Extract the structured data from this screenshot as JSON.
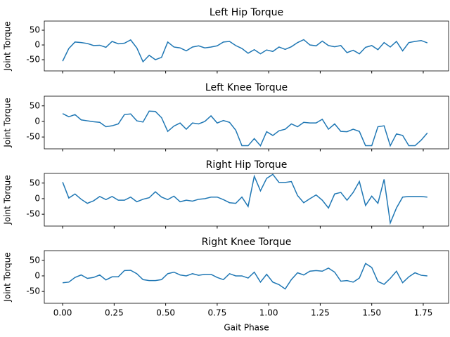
{
  "chart_data": [
    {
      "type": "line",
      "title": "Left Hip Torque",
      "ylabel": "Joint Torque",
      "color": "#1f77b4",
      "x": [
        0,
        0.03,
        0.06,
        0.09,
        0.12,
        0.15,
        0.18,
        0.21,
        0.24,
        0.27,
        0.3,
        0.33,
        0.36,
        0.39,
        0.42,
        0.45,
        0.48,
        0.51,
        0.54,
        0.57,
        0.6,
        0.63,
        0.66,
        0.69,
        0.72,
        0.75,
        0.78,
        0.81,
        0.84,
        0.87,
        0.9,
        0.93,
        0.96,
        0.99,
        1.02,
        1.05,
        1.08,
        1.11,
        1.14,
        1.17,
        1.2,
        1.23,
        1.26,
        1.29,
        1.32,
        1.35,
        1.38,
        1.41,
        1.44,
        1.47,
        1.5,
        1.53,
        1.56,
        1.59,
        1.62,
        1.65,
        1.68,
        1.71,
        1.74,
        1.77
      ],
      "values": [
        -55,
        -12,
        10,
        8,
        5,
        -2,
        -1,
        -8,
        12,
        4,
        6,
        17,
        -10,
        -57,
        -35,
        -50,
        -42,
        10,
        -7,
        -10,
        -20,
        -7,
        -3,
        -10,
        -7,
        -3,
        10,
        12,
        -2,
        -12,
        -28,
        -16,
        -30,
        -17,
        -22,
        -7,
        -15,
        -6,
        8,
        18,
        0,
        -3,
        13,
        -2,
        -6,
        -2,
        -26,
        -18,
        -30,
        -8,
        -2,
        -16,
        8,
        -7,
        12,
        -20,
        8,
        12,
        15,
        7
      ],
      "xlim": [
        -0.089,
        1.873
      ],
      "ylim": [
        -88,
        81
      ],
      "yticks": [
        -50,
        0,
        50
      ],
      "xticks": [
        0,
        0.25,
        0.5,
        0.75,
        1,
        1.25,
        1.5,
        1.75
      ]
    },
    {
      "type": "line",
      "title": "Left Knee Torque",
      "ylabel": "Joint Torque",
      "color": "#1f77b4",
      "x": [
        0,
        0.03,
        0.06,
        0.09,
        0.12,
        0.15,
        0.18,
        0.21,
        0.24,
        0.27,
        0.3,
        0.33,
        0.36,
        0.39,
        0.42,
        0.45,
        0.48,
        0.51,
        0.54,
        0.57,
        0.6,
        0.63,
        0.66,
        0.69,
        0.72,
        0.75,
        0.78,
        0.81,
        0.84,
        0.87,
        0.9,
        0.93,
        0.96,
        0.99,
        1.02,
        1.05,
        1.08,
        1.11,
        1.14,
        1.17,
        1.2,
        1.23,
        1.26,
        1.29,
        1.32,
        1.35,
        1.38,
        1.41,
        1.44,
        1.47,
        1.5,
        1.53,
        1.56,
        1.59,
        1.62,
        1.65,
        1.68,
        1.71,
        1.74,
        1.77
      ],
      "values": [
        25,
        15,
        22,
        5,
        2,
        -1,
        -3,
        -17,
        -14,
        -8,
        22,
        24,
        2,
        -2,
        33,
        32,
        12,
        -32,
        -15,
        -5,
        -25,
        -5,
        -8,
        0,
        18,
        -5,
        3,
        -3,
        -28,
        -78,
        -78,
        -55,
        -78,
        -33,
        -45,
        -30,
        -25,
        -8,
        -17,
        -3,
        -5,
        -5,
        7,
        -25,
        -8,
        -32,
        -33,
        -25,
        -32,
        -78,
        -78,
        -17,
        -14,
        -78,
        -40,
        -45,
        -78,
        -78,
        -60,
        -37
      ],
      "xlim": [
        -0.089,
        1.873
      ],
      "ylim": [
        -88,
        81
      ],
      "yticks": [
        -50,
        0,
        50
      ],
      "xticks": [
        0,
        0.25,
        0.5,
        0.75,
        1,
        1.25,
        1.5,
        1.75
      ]
    },
    {
      "type": "line",
      "title": "Right Hip Torque",
      "ylabel": "Joint Torque",
      "color": "#1f77b4",
      "x": [
        0,
        0.03,
        0.06,
        0.09,
        0.12,
        0.15,
        0.18,
        0.21,
        0.24,
        0.27,
        0.3,
        0.33,
        0.36,
        0.39,
        0.42,
        0.45,
        0.48,
        0.51,
        0.54,
        0.57,
        0.6,
        0.63,
        0.66,
        0.69,
        0.72,
        0.75,
        0.78,
        0.81,
        0.84,
        0.87,
        0.9,
        0.93,
        0.96,
        0.99,
        1.02,
        1.05,
        1.08,
        1.11,
        1.14,
        1.17,
        1.2,
        1.23,
        1.26,
        1.29,
        1.32,
        1.35,
        1.38,
        1.41,
        1.44,
        1.47,
        1.5,
        1.53,
        1.56,
        1.59,
        1.62,
        1.65,
        1.68,
        1.71,
        1.74,
        1.77
      ],
      "values": [
        53,
        2,
        15,
        -2,
        -15,
        -7,
        7,
        -3,
        7,
        -5,
        -5,
        5,
        -10,
        -2,
        3,
        22,
        5,
        -3,
        8,
        -10,
        -5,
        -8,
        -2,
        0,
        5,
        5,
        -3,
        -13,
        -15,
        5,
        -25,
        72,
        25,
        65,
        78,
        52,
        52,
        55,
        10,
        -13,
        0,
        12,
        -5,
        -30,
        15,
        20,
        -5,
        20,
        55,
        -22,
        8,
        -15,
        62,
        -78,
        -30,
        5,
        7,
        7,
        7,
        5
      ],
      "xlim": [
        -0.089,
        1.873
      ],
      "ylim": [
        -88,
        81
      ],
      "yticks": [
        -50,
        0,
        50
      ],
      "xticks": [
        0,
        0.25,
        0.5,
        0.75,
        1,
        1.25,
        1.5,
        1.75
      ]
    },
    {
      "type": "line",
      "title": "Right Knee Torque",
      "ylabel": "Joint Torque",
      "xlabel": "Gait Phase",
      "color": "#1f77b4",
      "x": [
        0,
        0.03,
        0.06,
        0.09,
        0.12,
        0.15,
        0.18,
        0.21,
        0.24,
        0.27,
        0.3,
        0.33,
        0.36,
        0.39,
        0.42,
        0.45,
        0.48,
        0.51,
        0.54,
        0.57,
        0.6,
        0.63,
        0.66,
        0.69,
        0.72,
        0.75,
        0.78,
        0.81,
        0.84,
        0.87,
        0.9,
        0.93,
        0.96,
        0.99,
        1.02,
        1.05,
        1.08,
        1.11,
        1.14,
        1.17,
        1.2,
        1.23,
        1.26,
        1.29,
        1.32,
        1.35,
        1.38,
        1.41,
        1.44,
        1.47,
        1.5,
        1.53,
        1.56,
        1.59,
        1.62,
        1.65,
        1.68,
        1.71,
        1.74,
        1.77
      ],
      "values": [
        -22,
        -20,
        -5,
        3,
        -8,
        -5,
        3,
        -13,
        -3,
        -3,
        17,
        18,
        7,
        -12,
        -15,
        -15,
        -12,
        7,
        12,
        3,
        0,
        7,
        2,
        5,
        5,
        -5,
        -12,
        7,
        0,
        0,
        -7,
        12,
        -20,
        5,
        -20,
        -28,
        -42,
        -12,
        10,
        3,
        15,
        17,
        15,
        25,
        12,
        -17,
        -15,
        -20,
        -7,
        40,
        27,
        -18,
        -27,
        -8,
        15,
        -22,
        -3,
        10,
        2,
        0
      ],
      "xlim": [
        -0.089,
        1.873
      ],
      "ylim": [
        -88,
        81
      ],
      "yticks": [
        -50,
        0,
        50
      ],
      "xticks": [
        {
          "value": 0,
          "label": "0.00"
        },
        {
          "value": 0.25,
          "label": "0.25"
        },
        {
          "value": 0.5,
          "label": "0.50"
        },
        {
          "value": 0.75,
          "label": "0.75"
        },
        {
          "value": 1,
          "label": "1.00"
        },
        {
          "value": 1.25,
          "label": "1.25"
        },
        {
          "value": 1.5,
          "label": "1.50"
        },
        {
          "value": 1.75,
          "label": "1.75"
        }
      ]
    }
  ]
}
